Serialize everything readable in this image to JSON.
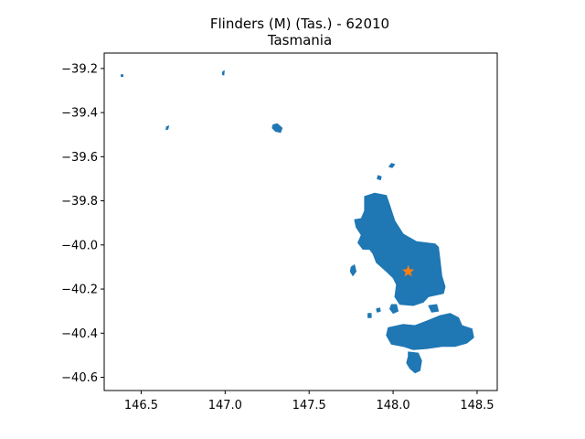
{
  "chart_data": {
    "type": "map",
    "title": "Flinders (M) (Tas.) - 62010",
    "subtitle": "Tasmania",
    "xlabel": "",
    "ylabel": "",
    "xlim": [
      146.28,
      148.62
    ],
    "ylim": [
      -40.66,
      -39.13
    ],
    "x_ticks": [
      146.5,
      147.0,
      147.5,
      148.0,
      148.5
    ],
    "x_tick_labels": [
      "146.5",
      "147.0",
      "147.5",
      "148.0",
      "148.5"
    ],
    "y_ticks": [
      -39.2,
      -39.4,
      -39.6,
      -39.8,
      -40.0,
      -40.2,
      -40.4,
      -40.6
    ],
    "y_tick_labels": [
      "−39.2",
      "−39.4",
      "−39.6",
      "−39.8",
      "−40.0",
      "−40.2",
      "−40.4",
      "−40.6"
    ],
    "grid": false,
    "region_color": "#1f77b4",
    "marker": {
      "shape": "star",
      "color": "#ff7f0e",
      "lon": 148.09,
      "lat": -40.12
    },
    "regions": [
      {
        "name": "",
        "points": [
          [
            147.83,
            -39.78
          ],
          [
            147.89,
            -39.765
          ],
          [
            147.96,
            -39.775
          ],
          [
            147.98,
            -39.82
          ],
          [
            148.01,
            -39.89
          ],
          [
            148.06,
            -39.95
          ],
          [
            148.14,
            -39.985
          ],
          [
            148.25,
            -39.995
          ],
          [
            148.27,
            -40.01
          ],
          [
            148.28,
            -40.07
          ],
          [
            148.29,
            -40.14
          ],
          [
            148.31,
            -40.19
          ],
          [
            148.3,
            -40.22
          ],
          [
            148.21,
            -40.235
          ],
          [
            148.18,
            -40.26
          ],
          [
            148.12,
            -40.275
          ],
          [
            148.04,
            -40.27
          ],
          [
            148.01,
            -40.235
          ],
          [
            148.02,
            -40.18
          ],
          [
            148.0,
            -40.15
          ],
          [
            147.96,
            -40.12
          ],
          [
            147.9,
            -40.08
          ],
          [
            147.88,
            -40.04
          ],
          [
            147.86,
            -40.02
          ],
          [
            147.82,
            -40.02
          ],
          [
            147.79,
            -39.99
          ],
          [
            147.81,
            -39.955
          ],
          [
            147.78,
            -39.92
          ],
          [
            147.77,
            -39.885
          ],
          [
            147.81,
            -39.88
          ],
          [
            147.83,
            -39.845
          ]
        ]
      },
      {
        "name": "",
        "points": [
          [
            147.97,
            -40.375
          ],
          [
            148.06,
            -40.36
          ],
          [
            148.13,
            -40.365
          ],
          [
            148.2,
            -40.345
          ],
          [
            148.28,
            -40.32
          ],
          [
            148.34,
            -40.31
          ],
          [
            148.39,
            -40.33
          ],
          [
            148.41,
            -40.365
          ],
          [
            148.47,
            -40.38
          ],
          [
            148.48,
            -40.42
          ],
          [
            148.44,
            -40.445
          ],
          [
            148.37,
            -40.46
          ],
          [
            148.29,
            -40.46
          ],
          [
            148.2,
            -40.47
          ],
          [
            148.12,
            -40.475
          ],
          [
            148.06,
            -40.46
          ],
          [
            147.99,
            -40.45
          ],
          [
            147.96,
            -40.41
          ]
        ]
      },
      {
        "name": "",
        "points": [
          [
            148.09,
            -40.485
          ],
          [
            148.15,
            -40.49
          ],
          [
            148.17,
            -40.525
          ],
          [
            148.16,
            -40.57
          ],
          [
            148.13,
            -40.58
          ],
          [
            148.1,
            -40.56
          ],
          [
            148.08,
            -40.535
          ],
          [
            148.09,
            -40.505
          ]
        ]
      },
      {
        "name": "",
        "points": [
          [
            147.99,
            -40.27
          ],
          [
            148.02,
            -40.27
          ],
          [
            148.03,
            -40.3
          ],
          [
            148.0,
            -40.31
          ],
          [
            147.98,
            -40.29
          ]
        ]
      },
      {
        "name": "",
        "points": [
          [
            148.21,
            -40.275
          ],
          [
            148.26,
            -40.27
          ],
          [
            148.27,
            -40.3
          ],
          [
            148.23,
            -40.305
          ]
        ]
      },
      {
        "name": "",
        "points": [
          [
            147.9,
            -40.29
          ],
          [
            147.92,
            -40.285
          ],
          [
            147.925,
            -40.3
          ],
          [
            147.905,
            -40.305
          ]
        ]
      },
      {
        "name": "",
        "points": [
          [
            147.85,
            -40.31
          ],
          [
            147.87,
            -40.31
          ],
          [
            147.87,
            -40.33
          ],
          [
            147.85,
            -40.33
          ]
        ]
      },
      {
        "name": "",
        "points": [
          [
            147.75,
            -40.1
          ],
          [
            147.77,
            -40.09
          ],
          [
            147.78,
            -40.12
          ],
          [
            147.76,
            -40.14
          ],
          [
            147.745,
            -40.12
          ]
        ]
      },
      {
        "name": "",
        "points": [
          [
            147.99,
            -39.63
          ],
          [
            148.01,
            -39.635
          ],
          [
            147.995,
            -39.65
          ],
          [
            147.975,
            -39.645
          ]
        ]
      },
      {
        "name": "",
        "points": [
          [
            147.91,
            -39.685
          ],
          [
            147.93,
            -39.69
          ],
          [
            147.925,
            -39.705
          ],
          [
            147.905,
            -39.7
          ]
        ]
      },
      {
        "name": "",
        "points": [
          [
            147.285,
            -39.455
          ],
          [
            147.31,
            -39.45
          ],
          [
            147.34,
            -39.47
          ],
          [
            147.33,
            -39.49
          ],
          [
            147.3,
            -39.485
          ],
          [
            147.28,
            -39.47
          ]
        ]
      },
      {
        "name": "",
        "points": [
          [
            146.65,
            -39.465
          ],
          [
            146.665,
            -39.46
          ],
          [
            146.66,
            -39.475
          ],
          [
            146.648,
            -39.478
          ]
        ]
      },
      {
        "name": "",
        "points": [
          [
            146.985,
            -39.215
          ],
          [
            146.995,
            -39.21
          ],
          [
            146.993,
            -39.23
          ],
          [
            146.983,
            -39.228
          ]
        ]
      },
      {
        "name": "",
        "points": [
          [
            146.38,
            -39.228
          ],
          [
            146.392,
            -39.228
          ],
          [
            146.392,
            -39.236
          ],
          [
            146.38,
            -39.236
          ]
        ]
      }
    ]
  }
}
